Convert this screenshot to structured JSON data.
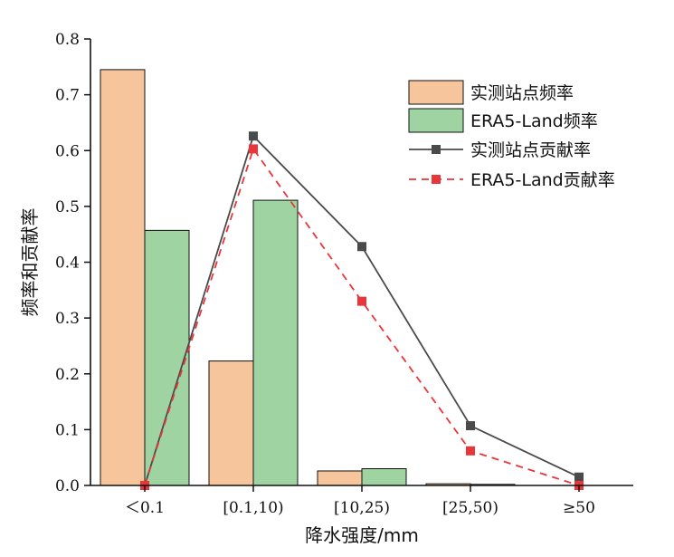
{
  "chart_data": {
    "type": "bar",
    "categories": [
      "＜0.1",
      "[0.1,10)",
      "[10,25)",
      "[25,50)",
      "≥50"
    ],
    "xlabel": "降水强度/mm",
    "ylabel": "频率和贡献率",
    "ylim": [
      0,
      0.8
    ],
    "yticks": [
      "0.0",
      "0.1",
      "0.2",
      "0.3",
      "0.4",
      "0.5",
      "0.6",
      "0.7",
      "0.8"
    ],
    "grid": false,
    "legend_position": "top-right",
    "bars": [
      {
        "name": "实测站点频率",
        "color": "#f7c59b",
        "values": [
          0.745,
          0.223,
          0.026,
          0.003,
          0.0
        ]
      },
      {
        "name": "ERA5-Land频率",
        "color": "#9fd4a2",
        "values": [
          0.457,
          0.511,
          0.03,
          0.002,
          0.0
        ]
      }
    ],
    "lines": [
      {
        "name": "实测站点贡献率",
        "color": "#4a4a4a",
        "style": "solid",
        "marker": "square",
        "values": [
          0.0,
          0.626,
          0.428,
          0.107,
          0.015
        ]
      },
      {
        "name": "ERA5-Land贡献率",
        "color": "#e8363a",
        "style": "dashed",
        "marker": "square",
        "values": [
          0.0,
          0.603,
          0.33,
          0.062,
          0.0
        ]
      }
    ]
  }
}
